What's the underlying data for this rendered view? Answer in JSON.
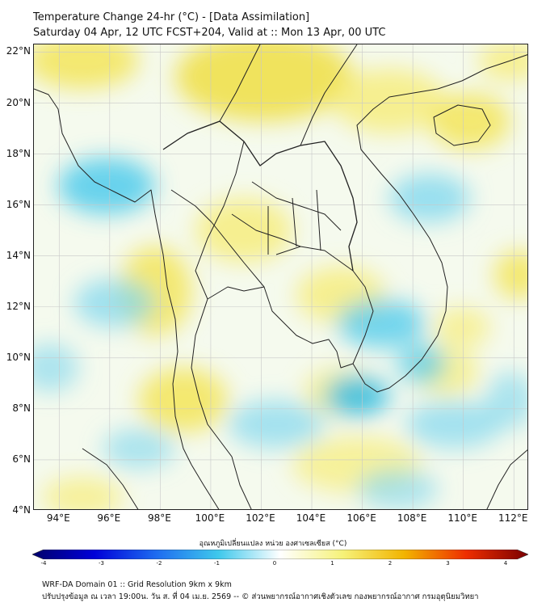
{
  "header": {
    "title": "Temperature Change 24-hr (°C) - [Data Assimilation]",
    "subtitle": "Saturday 04 Apr, 12 UTC FCST+204, Valid at :: Mon 13 Apr, 00 UTC"
  },
  "map": {
    "lat_labels": [
      "22°N",
      "20°N",
      "18°N",
      "16°N",
      "14°N",
      "12°N",
      "10°N",
      "8°N",
      "6°N",
      "4°N"
    ],
    "lon_labels": [
      "94°E",
      "96°E",
      "98°E",
      "100°E",
      "102°E",
      "104°E",
      "106°E",
      "108°E",
      "110°E",
      "112°E"
    ],
    "lat_range": [
      4,
      22.3
    ],
    "lon_range": [
      93,
      112.6
    ],
    "warm_color": "#f6eb62",
    "cool_color": "#3ec8ec",
    "land_lines_color": "#222222",
    "grid_color": "#c8c8c8"
  },
  "colorbar": {
    "title": "อุณหภูมิเปลี่ยนแปลง หน่วย องศาเซลเซียส (°C)",
    "ticks": [
      "-4",
      "-3",
      "-2",
      "-1",
      "0",
      "1",
      "2",
      "3",
      "4"
    ],
    "range": [
      -4,
      4
    ],
    "colors": [
      "#00006b",
      "#0000d8",
      "#1e6cf0",
      "#3ec8ec",
      "#ffffff",
      "#f6f27a",
      "#f2b400",
      "#ee2e00",
      "#7a0000"
    ]
  },
  "footer": {
    "line1": "WRF-DA Domain 01 :: Grid Resolution 9km x 9km",
    "line2": "ปรับปรุงข้อมูล ณ เวลา 19:00น. วัน ส. ที่ 04 เม.ย. 2569 -- © ส่วนพยากรณ์อากาศเชิงตัวเลข กองพยากรณ์อากาศ กรมอุตุนิยมวิทยา"
  }
}
